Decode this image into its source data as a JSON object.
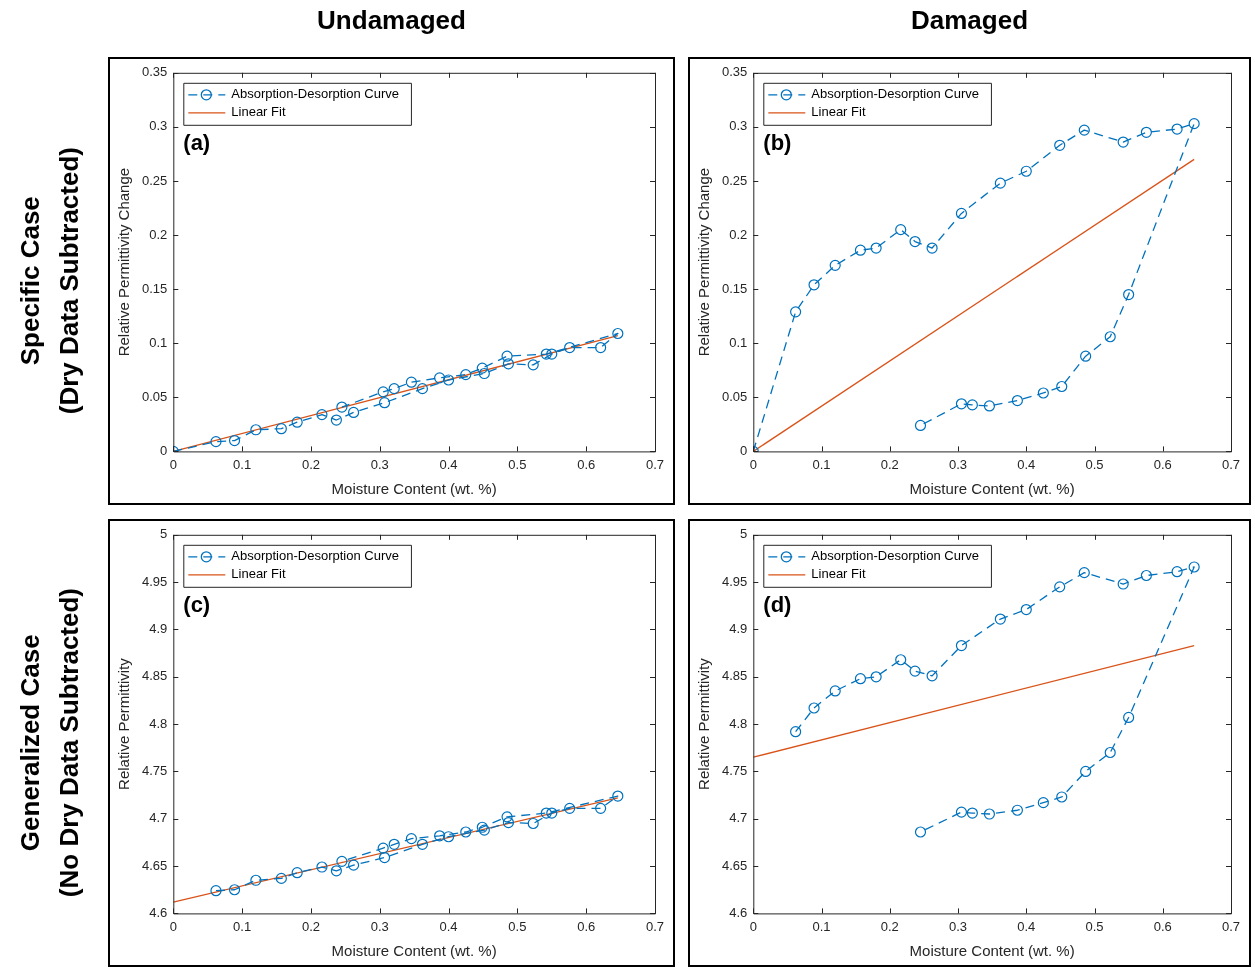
{
  "chart_data": [
    {
      "type": "line",
      "title": "Undamaged",
      "xlabel": "Moisture Content (wt. %)",
      "ylabel": "Relative Permittivity Change",
      "annotations": [
        "(a)",
        "Specific Case",
        "(Dry Data Subtracted)"
      ],
      "xlim": [
        0,
        0.7
      ],
      "xticks": [
        0,
        0.1,
        0.2,
        0.3,
        0.4,
        0.5,
        0.6,
        0.7
      ],
      "ylim": [
        0,
        0.35
      ],
      "yticks": [
        0,
        0.05,
        0.1,
        0.15,
        0.2,
        0.25,
        0.3,
        0.35
      ],
      "legend": "top left",
      "series": [
        {
          "name": "Absorption-Desorption Curve",
          "color": "#0072bd",
          "marker": "circle",
          "line_style": "dashed",
          "x": [
            0,
            0.062,
            0.089,
            0.12,
            0.157,
            0.18,
            0.216,
            0.237,
            0.262,
            0.307,
            0.362,
            0.4,
            0.452,
            0.487,
            0.523,
            0.55,
            0.576,
            0.621,
            0.646,
            0.542,
            0.485,
            0.449,
            0.425,
            0.387,
            0.346,
            0.321,
            0.305,
            0.245
          ],
          "values": [
            0,
            0.009,
            0.01,
            0.02,
            0.021,
            0.027,
            0.034,
            0.029,
            0.036,
            0.045,
            0.058,
            0.066,
            0.072,
            0.081,
            0.08,
            0.09,
            0.096,
            0.096,
            0.109,
            0.09,
            0.088,
            0.077,
            0.071,
            0.068,
            0.064,
            0.058,
            0.055,
            0.041
          ]
        },
        {
          "name": "Linear Fit",
          "type": "line",
          "color": "#d95319",
          "marker": "none",
          "line_style": "solid",
          "x": [
            0,
            0.646
          ],
          "values": [
            0,
            0.107
          ]
        }
      ]
    },
    {
      "type": "line",
      "title": "Damaged",
      "xlabel": "Moisture Content (wt. %)",
      "ylabel": "Relative Permittivity Change",
      "annotations": [
        "(b)"
      ],
      "xlim": [
        0,
        0.7
      ],
      "xticks": [
        0,
        0.1,
        0.2,
        0.3,
        0.4,
        0.5,
        0.6,
        0.7
      ],
      "ylim": [
        0,
        0.35
      ],
      "yticks": [
        0,
        0.05,
        0.1,
        0.15,
        0.2,
        0.25,
        0.3,
        0.35
      ],
      "legend": "top left",
      "series": [
        {
          "name": "Absorption-Desorption Curve",
          "color": "#0072bd",
          "marker": "circle",
          "line_style": "dashed",
          "x": [
            0,
            0.062,
            0.089,
            0.12,
            0.157,
            0.18,
            0.216,
            0.237,
            0.262,
            0.305,
            0.362,
            0.4,
            0.449,
            0.485,
            0.542,
            0.576,
            0.621,
            0.646,
            0.55,
            0.523,
            0.487,
            0.452,
            0.425,
            0.387,
            0.346,
            0.321,
            0.305,
            0.245
          ],
          "values": [
            0,
            0.129,
            0.154,
            0.172,
            0.186,
            0.188,
            0.205,
            0.194,
            0.188,
            0.22,
            0.248,
            0.259,
            0.283,
            0.297,
            0.286,
            0.295,
            0.298,
            0.303,
            0.145,
            0.106,
            0.088,
            0.06,
            0.054,
            0.047,
            0.042,
            0.043,
            0.044,
            0.024
          ]
        },
        {
          "name": "Linear Fit",
          "type": "line",
          "color": "#d95319",
          "marker": "none",
          "line_style": "solid",
          "x": [
            0,
            0.646
          ],
          "values": [
            0,
            0.27
          ]
        }
      ]
    },
    {
      "type": "line",
      "xlabel": "Moisture Content (wt. %)",
      "ylabel": "Relative Permittivity",
      "annotations": [
        "(c)",
        "Generalized Case",
        "(No Dry Data Subtracted)"
      ],
      "xlim": [
        0,
        0.7
      ],
      "xticks": [
        0,
        0.1,
        0.2,
        0.3,
        0.4,
        0.5,
        0.6,
        0.7
      ],
      "ylim": [
        4.6,
        5
      ],
      "yticks": [
        4.6,
        4.65,
        4.7,
        4.75,
        4.8,
        4.85,
        4.9,
        4.95,
        5
      ],
      "legend": "top left",
      "series": [
        {
          "name": "Absorption-Desorption Curve",
          "color": "#0072bd",
          "marker": "circle",
          "line_style": "dashed",
          "x": [
            0.062,
            0.089,
            0.12,
            0.157,
            0.18,
            0.216,
            0.237,
            0.262,
            0.307,
            0.362,
            0.4,
            0.452,
            0.487,
            0.523,
            0.55,
            0.576,
            0.621,
            0.646,
            0.542,
            0.485,
            0.449,
            0.425,
            0.387,
            0.346,
            0.321,
            0.305,
            0.245
          ],
          "values": [
            4.624,
            4.625,
            4.635,
            4.637,
            4.643,
            4.649,
            4.645,
            4.651,
            4.659,
            4.673,
            4.681,
            4.688,
            4.696,
            4.695,
            4.706,
            4.711,
            4.711,
            4.724,
            4.706,
            4.702,
            4.691,
            4.686,
            4.682,
            4.679,
            4.673,
            4.669,
            4.655
          ]
        },
        {
          "name": "Linear Fit",
          "type": "line",
          "color": "#d95319",
          "marker": "none",
          "line_style": "solid",
          "x": [
            0,
            0.646
          ],
          "values": [
            4.612,
            4.722
          ]
        }
      ]
    },
    {
      "type": "line",
      "xlabel": "Moisture Content (wt. %)",
      "ylabel": "Relative Permittivity",
      "annotations": [
        "(d)"
      ],
      "xlim": [
        0,
        0.7
      ],
      "xticks": [
        0,
        0.1,
        0.2,
        0.3,
        0.4,
        0.5,
        0.6,
        0.7
      ],
      "ylim": [
        4.6,
        5
      ],
      "yticks": [
        4.6,
        4.65,
        4.7,
        4.75,
        4.8,
        4.85,
        4.9,
        4.95,
        5
      ],
      "legend": "top left",
      "series": [
        {
          "name": "Absorption-Desorption Curve",
          "color": "#0072bd",
          "marker": "circle",
          "line_style": "dashed",
          "x": [
            0.062,
            0.089,
            0.12,
            0.157,
            0.18,
            0.216,
            0.237,
            0.262,
            0.305,
            0.362,
            0.4,
            0.449,
            0.485,
            0.542,
            0.576,
            0.621,
            0.646,
            0.55,
            0.523,
            0.487,
            0.452,
            0.425,
            0.387,
            0.346,
            0.321,
            0.305,
            0.245
          ],
          "values": [
            4.792,
            4.817,
            4.835,
            4.848,
            4.85,
            4.868,
            4.856,
            4.851,
            4.883,
            4.911,
            4.921,
            4.945,
            4.96,
            4.948,
            4.957,
            4.961,
            4.966,
            4.807,
            4.77,
            4.75,
            4.723,
            4.717,
            4.709,
            4.705,
            4.706,
            4.707,
            4.686
          ]
        },
        {
          "name": "Linear Fit",
          "type": "line",
          "color": "#d95319",
          "marker": "none",
          "line_style": "solid",
          "x": [
            0,
            0.646
          ],
          "values": [
            4.765,
            4.883
          ]
        }
      ]
    }
  ]
}
